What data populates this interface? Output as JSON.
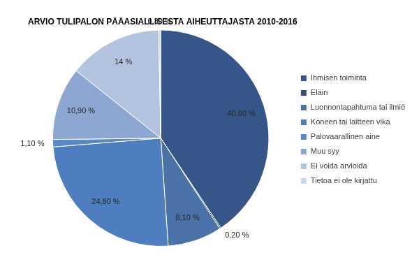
{
  "chart_data": {
    "type": "pie",
    "title": "ARVIO TULIPALON PÄÄASIALLISESTA AIHEUTTAJASTA 2010-2016",
    "categories": [
      "Ihmisen toiminta",
      "Eläin",
      "Luonnontapahtuma tai ilmiö",
      "Koneen tai laitteen vika",
      "Palovaarallinen aine",
      "Muu syy",
      "Ei voida arvioida",
      "Tietoa ei ole kirjattu"
    ],
    "values": [
      40.6,
      0.2,
      8.1,
      24.8,
      1.1,
      10.9,
      14,
      0.3
    ],
    "value_labels": [
      "40,60 %",
      "0,20 %",
      "8,10 %",
      "24,80 %",
      "1,10 %",
      "10,90 %",
      "14 %",
      "0,30 %"
    ],
    "colors": [
      "#36568a",
      "#2f4d80",
      "#4a72a8",
      "#4f7ec0",
      "#5b87c4",
      "#8ea7d2",
      "#b4c4e0",
      "#ccd6ea"
    ],
    "data_labels": true,
    "legend": "right"
  }
}
